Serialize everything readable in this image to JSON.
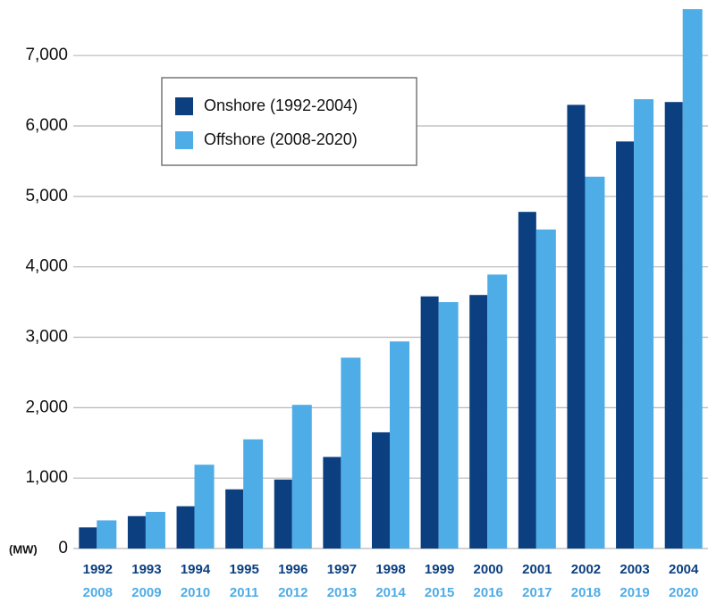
{
  "chart_data": {
    "type": "bar",
    "y_label": "(MW)",
    "categories": [
      "1992",
      "1993",
      "1994",
      "1995",
      "1996",
      "1997",
      "1998",
      "1999",
      "2000",
      "2001",
      "2002",
      "2003",
      "2004"
    ],
    "categories_secondary": [
      "2008",
      "2009",
      "2010",
      "2011",
      "2012",
      "2013",
      "2014",
      "2015",
      "2016",
      "2017",
      "2018",
      "2019",
      "2020"
    ],
    "series": [
      {
        "name": "Onshore (1992-2004)",
        "color": "#0b3f80",
        "values": [
          300,
          460,
          600,
          840,
          980,
          1300,
          1650,
          3580,
          3600,
          4780,
          6300,
          5780,
          6340
        ]
      },
      {
        "name": "Offshore (2008-2020)",
        "color": "#4eace6",
        "values": [
          400,
          520,
          1190,
          1550,
          2040,
          2710,
          2940,
          3500,
          3890,
          4530,
          5280,
          6380,
          7660
        ]
      }
    ],
    "ylim": [
      0,
      7700
    ],
    "yticks": [
      0,
      {
        "value": 1000,
        "label": "1,000"
      },
      {
        "value": 2000,
        "label": "2,000"
      },
      {
        "value": 3000,
        "label": "3,000"
      },
      {
        "value": 4000,
        "label": "4,000"
      },
      {
        "value": 5000,
        "label": "5,000"
      },
      {
        "value": 6000,
        "label": "6,000"
      },
      {
        "value": 7000,
        "label": "7,000"
      }
    ],
    "grid": true,
    "legend": "upper-left"
  }
}
